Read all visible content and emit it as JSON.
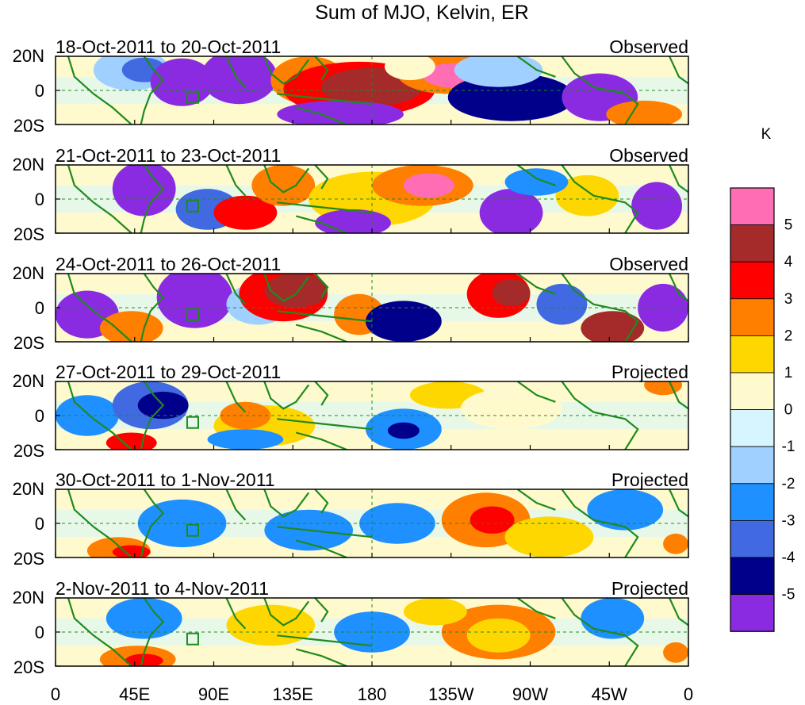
{
  "title": "Sum of MJO, Kelvin, ER",
  "colorbar": {
    "unit": "K",
    "labels": [
      "5",
      "4",
      "3",
      "2",
      "1",
      "0",
      "-1",
      "-2",
      "-3",
      "-4",
      "-5"
    ],
    "colors": [
      "#ff6eb4",
      "#a52a2a",
      "#ff0000",
      "#ff7f00",
      "#ffd700",
      "#fffacd",
      "#d6f5ff",
      "#9fd0ff",
      "#1e90ff",
      "#4169e1",
      "#00008b",
      "#8a2be2"
    ]
  },
  "lat_labels": [
    "20N",
    "0",
    "20S"
  ],
  "lon_labels": [
    "0",
    "45E",
    "90E",
    "135E",
    "180",
    "135W",
    "90W",
    "45W",
    "0"
  ],
  "panels": [
    {
      "date": "18-Oct-2011 to 20-Oct-2011",
      "type": "Observed"
    },
    {
      "date": "21-Oct-2011 to 23-Oct-2011",
      "type": "Observed"
    },
    {
      "date": "24-Oct-2011 to 26-Oct-2011",
      "type": "Observed"
    },
    {
      "date": "27-Oct-2011 to 29-Oct-2011",
      "type": "Projected"
    },
    {
      "date": "30-Oct-2011 to 1-Nov-2011",
      "type": "Projected"
    },
    {
      "date": "2-Nov-2011 to 4-Nov-2011",
      "type": "Projected"
    }
  ],
  "map_colors": {
    "coastline": "#1f8a1f",
    "reference_line": "#1f8a1f"
  }
}
